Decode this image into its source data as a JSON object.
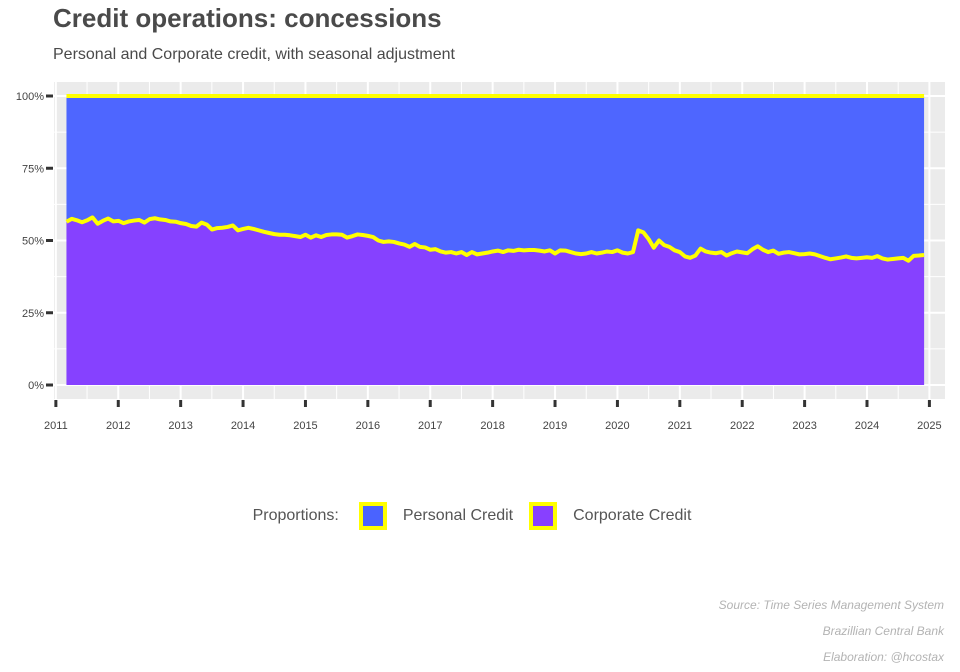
{
  "title": "Credit operations: concessions",
  "subtitle": "Personal and Corporate credit, with seasonal adjustment",
  "legend": {
    "title": "Proportions:",
    "items": [
      {
        "label": "Personal Credit",
        "color": "#4a63ff"
      },
      {
        "label": "Corporate Credit",
        "color": "#8840ff"
      }
    ],
    "border_color": "#ffff00"
  },
  "captions": {
    "source": "Source: Time Series Management System",
    "institution": "Brazillian Central Bank",
    "elaboration": "Elaboration: @hcostax"
  },
  "chart_data": {
    "type": "area",
    "stacked": "proportion",
    "x_start": 2011.17,
    "x_step": 0.0833,
    "xlim": [
      2010.97,
      2025.25
    ],
    "ylim": [
      0,
      1
    ],
    "x_ticks": [
      2011,
      2012,
      2013,
      2014,
      2015,
      2016,
      2017,
      2018,
      2019,
      2020,
      2021,
      2022,
      2023,
      2024,
      2025
    ],
    "y_ticks": [
      {
        "value": 0,
        "label": "0%"
      },
      {
        "value": 0.25,
        "label": "25%"
      },
      {
        "value": 0.5,
        "label": "50%"
      },
      {
        "value": 0.75,
        "label": "75%"
      },
      {
        "value": 1,
        "label": "100%"
      }
    ],
    "grid": true,
    "legend_position": "bottom",
    "line_color": "#ffff00",
    "series": [
      {
        "name": "Corporate Credit",
        "color": "#8840ff",
        "values": [
          0.565,
          0.575,
          0.57,
          0.563,
          0.57,
          0.58,
          0.558,
          0.568,
          0.576,
          0.566,
          0.568,
          0.56,
          0.566,
          0.569,
          0.571,
          0.562,
          0.574,
          0.577,
          0.573,
          0.571,
          0.566,
          0.565,
          0.56,
          0.557,
          0.55,
          0.548,
          0.562,
          0.555,
          0.538,
          0.543,
          0.544,
          0.547,
          0.552,
          0.535,
          0.54,
          0.544,
          0.54,
          0.535,
          0.53,
          0.526,
          0.522,
          0.52,
          0.52,
          0.518,
          0.515,
          0.512,
          0.52,
          0.51,
          0.518,
          0.512,
          0.519,
          0.521,
          0.521,
          0.52,
          0.51,
          0.515,
          0.521,
          0.519,
          0.516,
          0.512,
          0.5,
          0.495,
          0.497,
          0.495,
          0.49,
          0.486,
          0.478,
          0.488,
          0.478,
          0.476,
          0.468,
          0.47,
          0.462,
          0.458,
          0.46,
          0.455,
          0.46,
          0.45,
          0.46,
          0.452,
          0.455,
          0.458,
          0.462,
          0.465,
          0.46,
          0.466,
          0.464,
          0.468,
          0.466,
          0.467,
          0.467,
          0.465,
          0.462,
          0.466,
          0.455,
          0.466,
          0.465,
          0.46,
          0.455,
          0.453,
          0.455,
          0.46,
          0.455,
          0.458,
          0.462,
          0.46,
          0.466,
          0.458,
          0.455,
          0.46,
          0.535,
          0.528,
          0.505,
          0.475,
          0.5,
          0.484,
          0.478,
          0.466,
          0.46,
          0.445,
          0.44,
          0.448,
          0.472,
          0.462,
          0.458,
          0.456,
          0.46,
          0.448,
          0.456,
          0.462,
          0.459,
          0.456,
          0.47,
          0.48,
          0.468,
          0.46,
          0.465,
          0.454,
          0.458,
          0.46,
          0.456,
          0.452,
          0.453,
          0.455,
          0.452,
          0.446,
          0.44,
          0.435,
          0.438,
          0.441,
          0.445,
          0.44,
          0.438,
          0.44,
          0.442,
          0.44,
          0.446,
          0.438,
          0.434,
          0.436,
          0.438,
          0.44,
          0.43,
          0.447,
          0.448,
          0.45
        ]
      }
    ]
  }
}
